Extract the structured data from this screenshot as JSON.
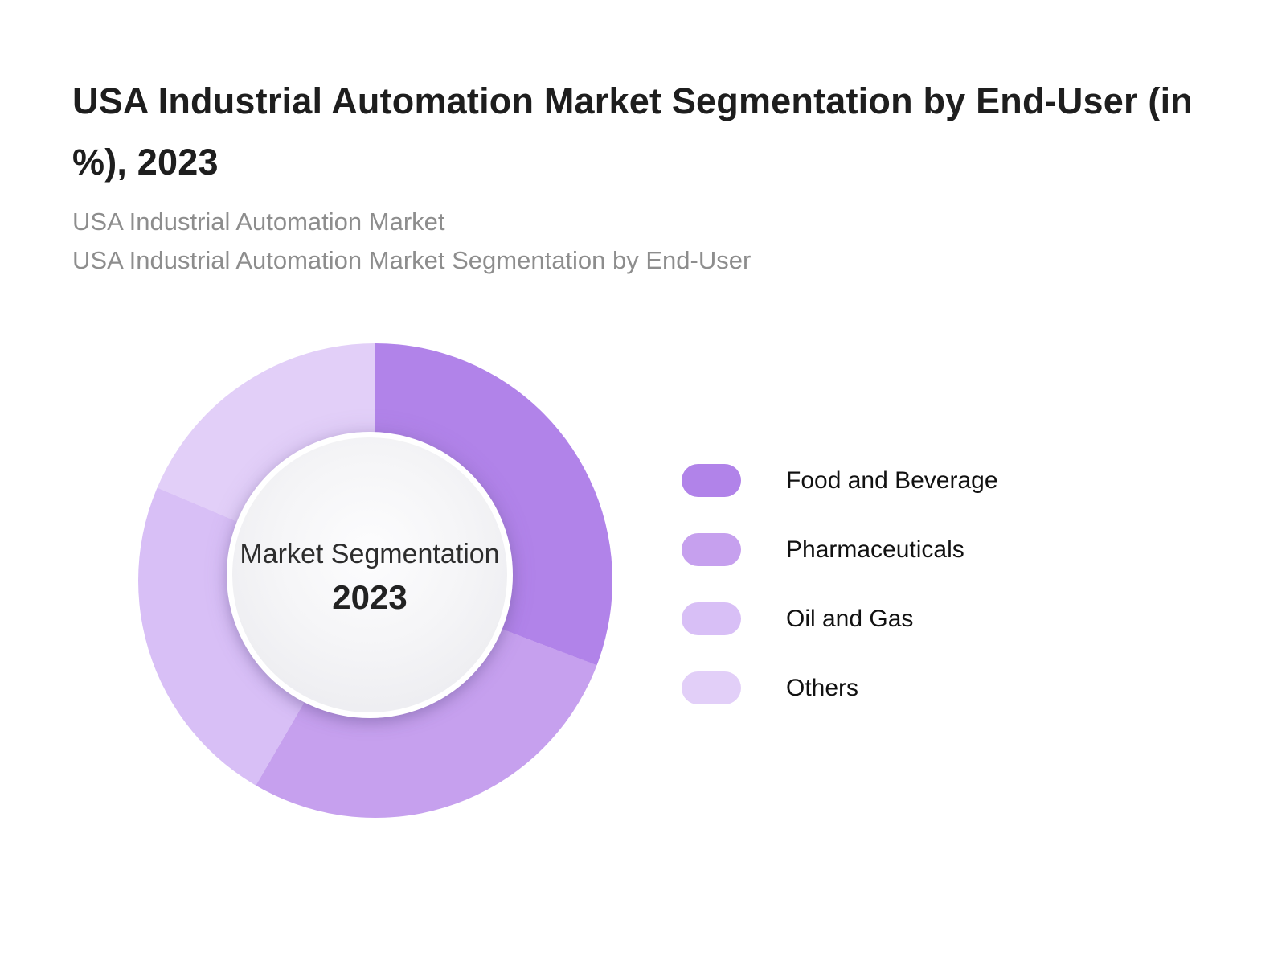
{
  "header": {
    "title": "USA Industrial Automation Market Segmentation by End-User (in %), 2023",
    "subtitle_line1": "USA Industrial Automation Market",
    "subtitle_line2": "USA Industrial Automation Market Segmentation by End-User"
  },
  "donut": {
    "center_label": "Market Segmentation",
    "center_year": "2023"
  },
  "legend": {
    "items": [
      {
        "label": "Food and Beverage",
        "color": "#b183e9"
      },
      {
        "label": "Pharmaceuticals",
        "color": "#c6a0ee"
      },
      {
        "label": "Oil and Gas",
        "color": "#d8bff6"
      },
      {
        "label": "Others",
        "color": "#e2cff8"
      }
    ]
  },
  "chart_data": {
    "type": "pie",
    "donut": true,
    "title": "USA Industrial Automation Market Segmentation by End-User (in %), 2023",
    "categories": [
      "Food and Beverage",
      "Pharmaceuticals",
      "Oil and Gas",
      "Others"
    ],
    "values": [
      30.8,
      27.6,
      23.0,
      18.6
    ],
    "unit": "%",
    "colors": [
      "#b183e9",
      "#c6a0ee",
      "#d8bff6",
      "#e2cff8"
    ],
    "start_angle_deg": 0,
    "direction": "clockwise",
    "center_text": [
      "Market Segmentation",
      "2023"
    ],
    "legend_position": "right",
    "year": "2023"
  }
}
